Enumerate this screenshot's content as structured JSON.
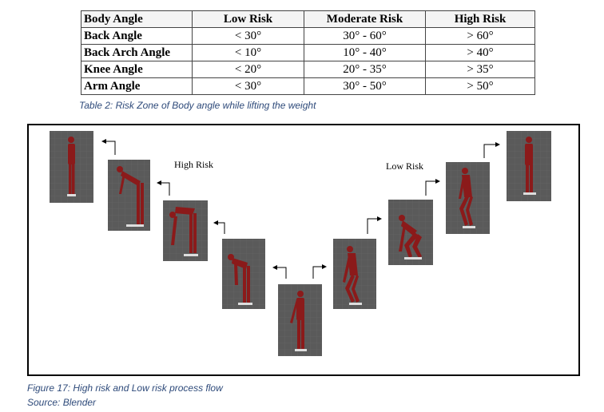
{
  "table": {
    "headers": [
      "Body Angle",
      "Low Risk",
      "Moderate Risk",
      "High Risk"
    ],
    "rows": [
      [
        "Back Angle",
        "< 30°",
        "30° - 60°",
        "> 60°"
      ],
      [
        "Back Arch Angle",
        "< 10°",
        "10° - 40°",
        "> 40°"
      ],
      [
        "Knee Angle",
        "< 20°",
        "20° - 35°",
        "> 35°"
      ],
      [
        "Arm Angle",
        "< 30°",
        "30° - 50°",
        "> 50°"
      ]
    ],
    "caption": "Table 2: Risk Zone of Body angle while lifting the weight"
  },
  "figure": {
    "high_risk_label": "High Risk",
    "low_risk_label": "Low Risk",
    "caption": "Figure 17: High risk and Low risk process flow",
    "source": "Source: Blender"
  },
  "colors": {
    "caption_blue": "#2e4a7a",
    "thumb_background": "#5a5a5a",
    "figure_suit": "#8b1a1a"
  }
}
